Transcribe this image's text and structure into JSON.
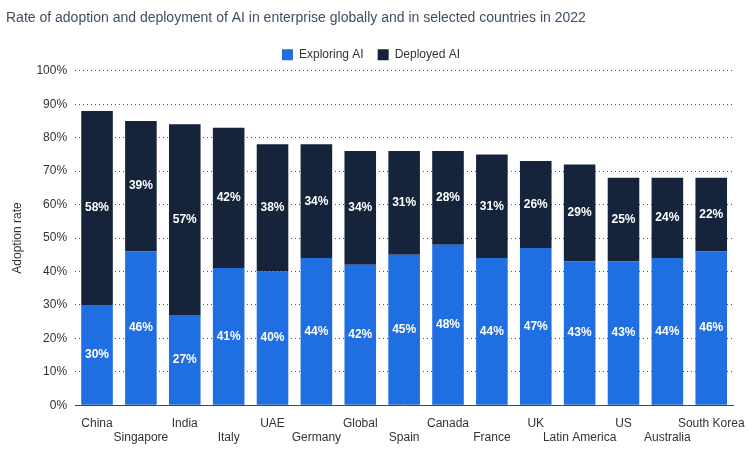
{
  "chart_data": {
    "type": "bar",
    "title": "Rate of adoption and deployment of AI in enterprise globally and in selected countries in 2022",
    "ylabel": "Adoption rate",
    "categories": [
      "China",
      "Singapore",
      "India",
      "Italy",
      "UAE",
      "Germany",
      "Global",
      "Spain",
      "Canada",
      "France",
      "UK",
      "Latin America",
      "US",
      "Australia",
      "South Korea"
    ],
    "series": [
      {
        "name": "Exploring AI",
        "color": "#1f6fe3",
        "values": [
          30,
          46,
          27,
          41,
          40,
          44,
          42,
          45,
          48,
          44,
          47,
          43,
          43,
          44,
          46
        ],
        "value_labels": [
          "30%",
          "46%",
          "27%",
          "41%",
          "40%",
          "44%",
          "42%",
          "45%",
          "48%",
          "44%",
          "47%",
          "43%",
          "43%",
          "44%",
          "46%"
        ]
      },
      {
        "name": "Deployed AI",
        "color": "#15243b",
        "values": [
          58,
          39,
          57,
          42,
          38,
          34,
          34,
          31,
          28,
          31,
          26,
          29,
          25,
          24,
          22
        ],
        "value_labels": [
          "58%",
          "39%",
          "57%",
          "42%",
          "38%",
          "34%",
          "34%",
          "31%",
          "28%",
          "31%",
          "26%",
          "29%",
          "25%",
          "24%",
          "22%"
        ]
      }
    ],
    "ylim": [
      0,
      100
    ],
    "yticks": [
      {
        "value": 0,
        "label": "0%"
      },
      {
        "value": 10,
        "label": "10%"
      },
      {
        "value": 20,
        "label": "20%"
      },
      {
        "value": 30,
        "label": "30%"
      },
      {
        "value": 40,
        "label": "40%"
      },
      {
        "value": 50,
        "label": "50%"
      },
      {
        "value": 60,
        "label": "60%"
      },
      {
        "value": 70,
        "label": "70%"
      },
      {
        "value": 80,
        "label": "80%"
      },
      {
        "value": 90,
        "label": "90%"
      },
      {
        "value": 100,
        "label": "100%"
      }
    ],
    "stacked": true,
    "data_labels": true,
    "grid": true,
    "legend": "top"
  }
}
